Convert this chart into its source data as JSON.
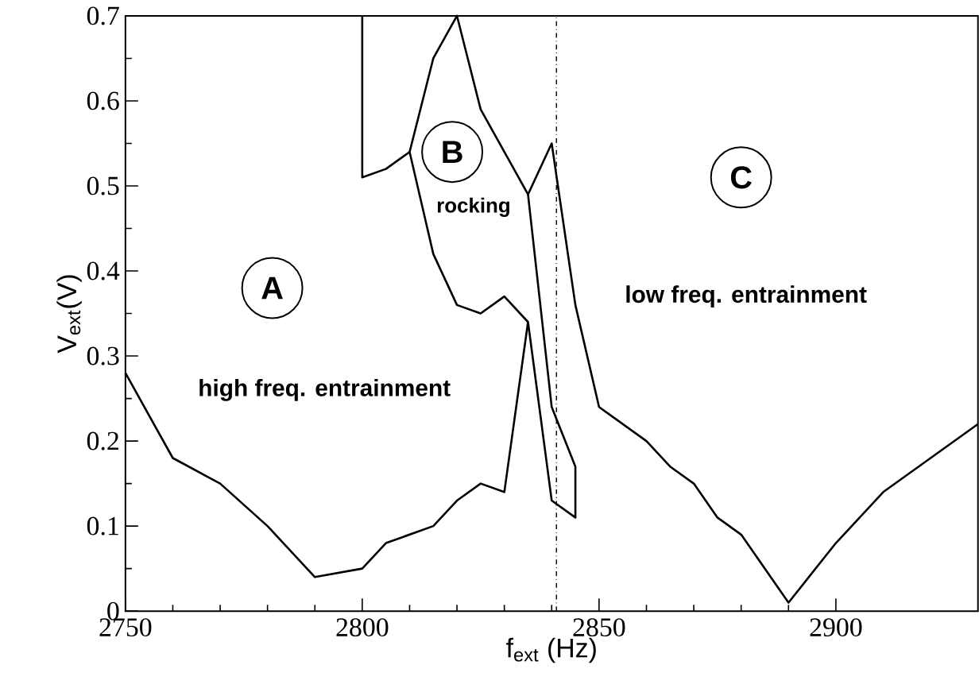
{
  "chart_data": {
    "type": "line",
    "xlabel": "f$_{ext}$ (Hz)",
    "ylabel": "V$_{ext}$(V)",
    "xlim": [
      2750,
      2930
    ],
    "ylim": [
      0,
      0.7
    ],
    "xticks": [
      2750,
      2800,
      2850,
      2900
    ],
    "yticks": [
      0,
      0.1,
      0.2,
      0.3,
      0.4,
      0.5,
      0.6,
      0.7
    ],
    "series": [
      {
        "color": "#000000",
        "x": [
          2750,
          2760,
          2770,
          2780,
          2790,
          2800,
          2805,
          2815,
          2820,
          2825,
          2830,
          2835,
          2840,
          2845,
          2845,
          2840,
          2835,
          2840,
          2845,
          2850,
          2860,
          2865,
          2870,
          2875,
          2880,
          2890,
          2900,
          2910,
          2930
        ],
        "values": [
          0.28,
          0.18,
          0.15,
          0.1,
          0.04,
          0.05,
          0.08,
          0.1,
          0.13,
          0.15,
          0.14,
          0.34,
          0.13,
          0.11,
          0.17,
          0.24,
          0.49,
          0.55,
          0.36,
          0.24,
          0.2,
          0.17,
          0.15,
          0.11,
          0.09,
          0.01,
          0.08,
          0.14,
          0.22
        ]
      },
      {
        "color": "#000000",
        "x": [
          2800,
          2800,
          2805,
          2810,
          2815,
          2820,
          2825,
          2830,
          2835
        ],
        "values": [
          0.7,
          0.51,
          0.52,
          0.54,
          0.42,
          0.36,
          0.35,
          0.37,
          0.34
        ]
      },
      {
        "color": "#000000",
        "x": [
          2810,
          2815,
          2820,
          2825,
          2830,
          2835
        ],
        "values": [
          0.54,
          0.65,
          0.7,
          0.59,
          0.54,
          0.49
        ]
      }
    ],
    "ref_lines": [
      {
        "axis": "x",
        "value": 2841,
        "line_style": "dashdotted",
        "color": "#000000"
      }
    ],
    "annotations": [
      "A",
      "high freq. entrainment",
      "B",
      "rocking",
      "C",
      "low freq. entrainment"
    ],
    "grid": false,
    "marker": "none",
    "line_style": "solid"
  }
}
